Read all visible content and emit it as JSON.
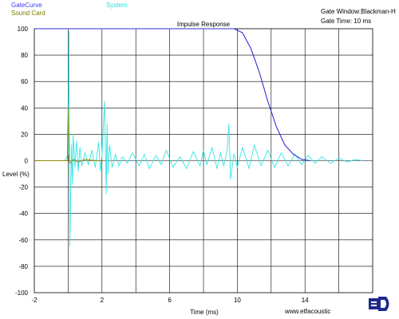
{
  "chart_data": {
    "type": "line",
    "title": "Impulse Response",
    "xlabel": "Time (ms)",
    "ylabel": "Level (%)",
    "xlim": [
      -2,
      18
    ],
    "ylim": [
      -100,
      100
    ],
    "x_ticks": [
      -2,
      2,
      6,
      10,
      14
    ],
    "y_ticks": [
      100,
      80,
      60,
      40,
      20,
      0,
      -20,
      -40,
      -60,
      -80,
      -100
    ],
    "grid": true,
    "legend": [
      "GateCurve",
      "System",
      "Sound Card"
    ],
    "series": [
      {
        "name": "GateCurve",
        "color": "#2f2fd6",
        "x": [
          -2,
          0,
          4,
          8,
          9.8,
          10.3,
          10.8,
          11.3,
          11.8,
          12.3,
          12.8,
          13.3,
          13.8,
          14.3
        ],
        "values": [
          100,
          100,
          100,
          100,
          100,
          97,
          85,
          67,
          45,
          26,
          12,
          5,
          1,
          0
        ]
      },
      {
        "name": "System",
        "color": "#33e6e6",
        "x": [
          -0.2,
          0,
          0.05,
          0.1,
          0.2,
          0.25,
          0.3,
          0.4,
          0.5,
          0.6,
          0.7,
          0.8,
          1.0,
          1.2,
          1.4,
          1.6,
          1.8,
          1.9,
          2.0,
          2.15,
          2.25,
          2.3,
          2.35,
          2.45,
          2.6,
          2.8,
          3.0,
          3.2,
          3.5,
          3.8,
          4.2,
          4.5,
          4.8,
          5.2,
          5.5,
          5.8,
          6.2,
          6.6,
          7.0,
          7.4,
          7.8,
          8.0,
          8.2,
          8.5,
          8.8,
          9.0,
          9.2,
          9.4,
          9.5,
          9.6,
          9.8,
          10.0,
          10.3,
          10.7,
          11.0,
          11.4,
          11.8,
          12.2,
          12.6,
          13.0,
          13.4,
          13.8,
          14.2,
          14.6,
          15.0,
          15.5,
          16.0,
          16.5,
          17.0,
          17.4
        ],
        "values": [
          0,
          5,
          98,
          -65,
          12,
          -18,
          20,
          -5,
          15,
          -8,
          10,
          -4,
          6,
          -3,
          8,
          -5,
          14,
          -8,
          4,
          45,
          -25,
          28,
          -10,
          12,
          -5,
          5,
          -4,
          3,
          -2,
          6,
          -4,
          5,
          -6,
          4,
          -3,
          8,
          -5,
          3,
          -6,
          7,
          -4,
          8,
          -3,
          10,
          -6,
          6,
          -4,
          8,
          28,
          -14,
          5,
          -5,
          10,
          -6,
          12,
          -4,
          8,
          -5,
          6,
          -4,
          5,
          -3,
          4,
          -2,
          3,
          -2,
          2,
          -1,
          1,
          0
        ]
      },
      {
        "name": "Sound Card",
        "color": "#8a8a00",
        "x": [
          -2,
          -0.05,
          0,
          0.05,
          0.1,
          0.3,
          0.6,
          1.0,
          1.6,
          2.0
        ],
        "values": [
          0,
          0,
          40,
          0,
          -2,
          1,
          -1,
          1,
          0,
          0
        ]
      }
    ]
  },
  "gate_window": "Gate Window:Blackman-H",
  "gate_time": "Gate Time: 10 ms",
  "watermark": "www.etfacoustic",
  "logo_icon": "etf-logo-icon"
}
